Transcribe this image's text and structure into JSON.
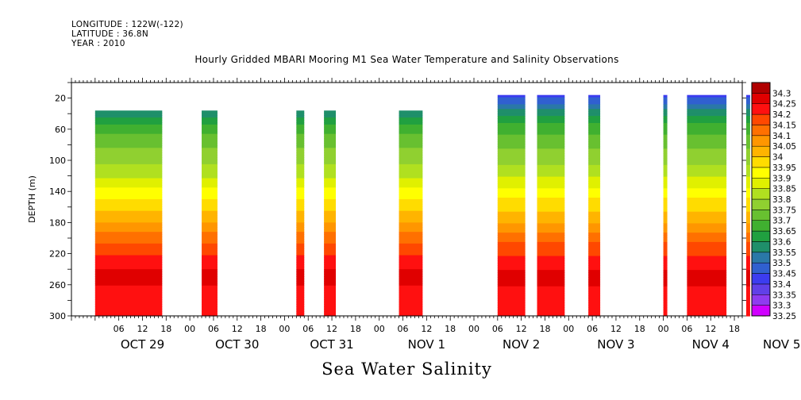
{
  "header": {
    "longitude": "LONGITUDE : 122W(-122)",
    "latitude": "LATITUDE : 36.8N",
    "year": "YEAR : 2010"
  },
  "chart_data": {
    "type": "heatmap",
    "title": "Hourly Gridded MBARI Mooring M1 Sea Water Temperature and Salinity Observations",
    "variable_title": "Sea Water Salinity",
    "ylabel": "DEPTH (m)",
    "ylim": [
      300,
      0
    ],
    "y_ticks": [
      20,
      60,
      100,
      140,
      180,
      220,
      260,
      300
    ],
    "xlim_hours": [
      -30,
      140
    ],
    "x_hour_ticks": [
      {
        "h": -18,
        "label": "06"
      },
      {
        "h": -12,
        "label": "12"
      },
      {
        "h": -6,
        "label": "18"
      },
      {
        "h": 0,
        "label": "00"
      },
      {
        "h": 6,
        "label": "06"
      },
      {
        "h": 12,
        "label": "12"
      },
      {
        "h": 18,
        "label": "18"
      },
      {
        "h": 24,
        "label": "00"
      },
      {
        "h": 30,
        "label": "06"
      },
      {
        "h": 36,
        "label": "12"
      },
      {
        "h": 42,
        "label": "18"
      },
      {
        "h": 48,
        "label": "00"
      },
      {
        "h": 54,
        "label": "06"
      },
      {
        "h": 60,
        "label": "12"
      },
      {
        "h": 66,
        "label": "18"
      },
      {
        "h": 72,
        "label": "00"
      },
      {
        "h": 78,
        "label": "06"
      },
      {
        "h": 84,
        "label": "12"
      },
      {
        "h": 90,
        "label": "18"
      },
      {
        "h": 96,
        "label": "00"
      },
      {
        "h": 102,
        "label": "06"
      },
      {
        "h": 108,
        "label": "12"
      },
      {
        "h": 114,
        "label": "18"
      },
      {
        "h": 120,
        "label": "00"
      },
      {
        "h": 126,
        "label": "06"
      },
      {
        "h": 132,
        "label": "12"
      },
      {
        "h": 138,
        "label": "18"
      },
      {
        "h": 144,
        "label": "00"
      },
      {
        "h": 150,
        "label": "06"
      },
      {
        "h": 156,
        "label": "12"
      },
      {
        "h": 162,
        "label": "18"
      },
      {
        "h": 168,
        "label": "00"
      }
    ],
    "date_labels": [
      {
        "h": -12,
        "label": "OCT 29"
      },
      {
        "h": 12,
        "label": "OCT 30"
      },
      {
        "h": 36,
        "label": "OCT 31"
      },
      {
        "h": 60,
        "label": "NOV  1"
      },
      {
        "h": 84,
        "label": "NOV  2"
      },
      {
        "h": 108,
        "label": "NOV  3"
      },
      {
        "h": 132,
        "label": "NOV  4"
      },
      {
        "h": 150,
        "label": "NOV  5"
      }
    ],
    "colorbar_levels": [
      33.25,
      33.3,
      33.35,
      33.4,
      33.45,
      33.5,
      33.55,
      33.6,
      33.65,
      33.7,
      33.75,
      33.8,
      33.85,
      33.9,
      33.95,
      34,
      34.05,
      34.1,
      34.15,
      34.2,
      34.25,
      34.3
    ],
    "colorbar_colors": [
      "#d000ff",
      "#8f3bf0",
      "#6040e8",
      "#3c3cf0",
      "#3060d0",
      "#2a78a8",
      "#1f8f6a",
      "#20a040",
      "#40b030",
      "#68c030",
      "#90d030",
      "#b0e020",
      "#e0f000",
      "#ffff00",
      "#ffdc00",
      "#ffb400",
      "#ff9600",
      "#ff7000",
      "#ff4800",
      "#ff1010",
      "#e00000",
      "#b00000"
    ],
    "data_segments": [
      {
        "start_h": -24,
        "end_h": -7,
        "top_depth": 36
      },
      {
        "start_h": 3,
        "end_h": 7,
        "top_depth": 36
      },
      {
        "start_h": 27,
        "end_h": 29,
        "top_depth": 36
      },
      {
        "start_h": 34,
        "end_h": 37,
        "top_depth": 36
      },
      {
        "start_h": 53,
        "end_h": 59,
        "top_depth": 36
      },
      {
        "start_h": 78,
        "end_h": 85,
        "top_depth": 16
      },
      {
        "start_h": 88,
        "end_h": 95,
        "top_depth": 16
      },
      {
        "start_h": 101,
        "end_h": 104,
        "top_depth": 16
      },
      {
        "start_h": 120,
        "end_h": 121,
        "top_depth": 16
      },
      {
        "start_h": 126,
        "end_h": 136,
        "top_depth": 16
      },
      {
        "start_h": 141,
        "end_h": 142,
        "top_depth": 16
      },
      {
        "start_h": 145,
        "end_h": 146,
        "top_depth": 16
      }
    ],
    "salinity_profile": [
      {
        "depth": 16,
        "value": 33.42
      },
      {
        "depth": 36,
        "value": 33.56
      },
      {
        "depth": 55,
        "value": 33.66
      },
      {
        "depth": 80,
        "value": 33.74
      },
      {
        "depth": 105,
        "value": 33.8
      },
      {
        "depth": 125,
        "value": 33.86
      },
      {
        "depth": 140,
        "value": 33.92
      },
      {
        "depth": 155,
        "value": 33.97
      },
      {
        "depth": 175,
        "value": 34.03
      },
      {
        "depth": 195,
        "value": 34.11
      },
      {
        "depth": 215,
        "value": 34.18
      },
      {
        "depth": 230,
        "value": 34.22
      },
      {
        "depth": 250,
        "value": 34.28
      },
      {
        "depth": 270,
        "value": 34.23
      },
      {
        "depth": 300,
        "value": 34.21
      }
    ]
  }
}
